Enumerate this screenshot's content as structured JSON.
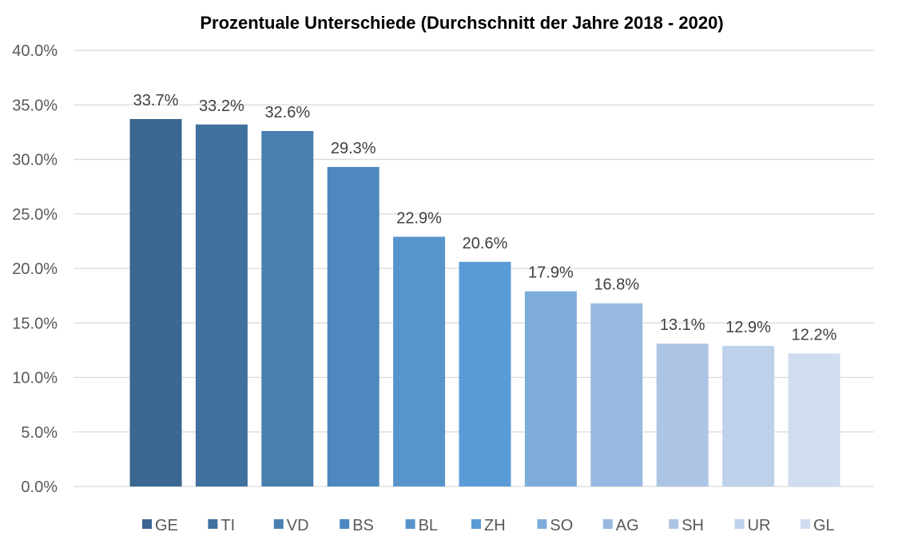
{
  "chart_data": {
    "type": "bar",
    "title": "Prozentuale Unterschiede (Durchschnitt der Jahre 2018 - 2020)",
    "xlabel": "",
    "ylabel": "",
    "ylim": [
      0,
      40
    ],
    "yticks": [
      "0.0%",
      "5.0%",
      "10.0%",
      "15.0%",
      "20.0%",
      "25.0%",
      "30.0%",
      "35.0%",
      "40.0%"
    ],
    "grid": true,
    "legend_position": "bottom",
    "categories": [
      "GE",
      "TI",
      "VD",
      "BS",
      "BL",
      "ZH",
      "SO",
      "AG",
      "SH",
      "UR",
      "GL"
    ],
    "values": [
      33.7,
      33.2,
      32.6,
      29.3,
      22.9,
      20.6,
      17.9,
      16.8,
      13.1,
      12.9,
      12.2
    ],
    "data_labels": [
      "33.7%",
      "33.2%",
      "32.6%",
      "29.3%",
      "22.9%",
      "20.6%",
      "17.9%",
      "16.8%",
      "13.1%",
      "12.9%",
      "12.2%"
    ],
    "colors": [
      "#3b6790",
      "#41729f",
      "#497faf",
      "#4d88bf",
      "#5794cc",
      "#5b9bd5",
      "#7eacda",
      "#98b9df",
      "#adc5e4",
      "#bfd1ea",
      "#d0dcef"
    ],
    "gridline_color": "#d9d9d9"
  }
}
